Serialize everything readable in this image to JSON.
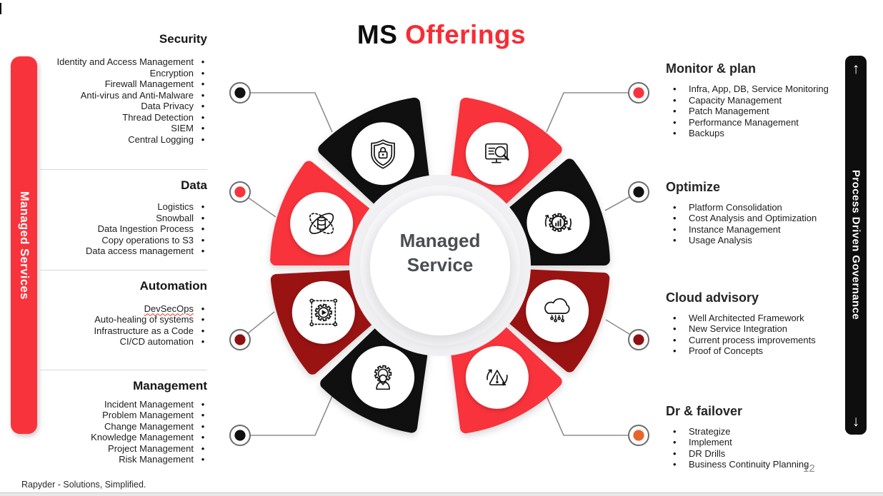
{
  "title": {
    "prefix": "MS",
    "highlight": "Offerings"
  },
  "left_bar": {
    "label": "Managed Services"
  },
  "right_bar": {
    "label": "Process Driven Governance",
    "up_arrow": "↑",
    "down_arrow": "↓"
  },
  "center": {
    "line1": "Managed",
    "line2": "Service"
  },
  "spellcheck_underline": "DevSecOps",
  "left_sections": [
    {
      "heading": "Security",
      "items": [
        "Identity and Access Management",
        "Encryption",
        "Firewall Management",
        "Anti-virus and Anti-Malware",
        "Data Privacy",
        "Thread Detection",
        "SIEM",
        "Central Logging"
      ]
    },
    {
      "heading": "Data",
      "items": [
        "Logistics",
        "Snowball",
        "Data Ingestion Process",
        "Copy operations to S3",
        "Data access management"
      ]
    },
    {
      "heading": "Automation",
      "items": [
        "DevSecOps",
        "Auto-healing of systems",
        "Infrastructure as a Code",
        "CI/CD automation"
      ]
    },
    {
      "heading": "Management",
      "items": [
        "Incident Management",
        "Problem Management",
        "Change Management",
        "Knowledge Management",
        "Project Management",
        "Risk Management"
      ]
    }
  ],
  "right_sections": [
    {
      "heading": "Monitor & plan",
      "items": [
        "Infra, App, DB, Service Monitoring",
        "Capacity Management",
        "Patch Management",
        "Performance Management",
        "Backups"
      ]
    },
    {
      "heading": "Optimize",
      "items": [
        "Platform Consolidation",
        "Cost Analysis and Optimization",
        "Instance Management",
        "Usage Analysis"
      ]
    },
    {
      "heading": "Cloud advisory",
      "items": [
        "Well Architected Framework",
        "New Service Integration",
        "Current process improvements",
        "Proof of Concepts"
      ]
    },
    {
      "heading": "Dr & failover",
      "items": [
        "Strategize",
        "Implement",
        "DR Drills",
        "Business Continuity Planning"
      ]
    }
  ],
  "wheel": {
    "segments": [
      {
        "name": "security",
        "icon": "shield-lock-icon",
        "color": "#101010"
      },
      {
        "name": "monitor-plan",
        "icon": "monitor-search-icon",
        "color": "#f8333c"
      },
      {
        "name": "optimize",
        "icon": "gear-chart-icon",
        "color": "#101010"
      },
      {
        "name": "data",
        "icon": "data-orbit-icon",
        "color": "#f8333c"
      },
      {
        "name": "automation",
        "icon": "gear-play-icon",
        "color": "#9a1313"
      },
      {
        "name": "cloud-advisory",
        "icon": "cloud-circuit-icon",
        "color": "#9a1313"
      },
      {
        "name": "management",
        "icon": "person-gear-icon",
        "color": "#101010"
      },
      {
        "name": "dr-failover",
        "icon": "alert-sync-icon",
        "color": "#f8333c"
      }
    ],
    "connectors": [
      {
        "position": "top-left",
        "color": "#111111"
      },
      {
        "position": "mid-left",
        "color": "#f8333c"
      },
      {
        "position": "lower-left",
        "color": "#8f1010"
      },
      {
        "position": "bottom-left",
        "color": "#111111"
      },
      {
        "position": "top-right",
        "color": "#f8333c"
      },
      {
        "position": "mid-right",
        "color": "#111111"
      },
      {
        "position": "lower-right",
        "color": "#8f1010"
      },
      {
        "position": "bottom-right",
        "color": "#e8642b"
      }
    ]
  },
  "footer": {
    "text": "Rapyder - Solutions, Simplified."
  },
  "page_number": "12",
  "colors": {
    "accent_red": "#f8333c",
    "maroon": "#9a1313",
    "black": "#101010",
    "orange_dot": "#e8642b",
    "line_gray": "#8f8f8f"
  }
}
